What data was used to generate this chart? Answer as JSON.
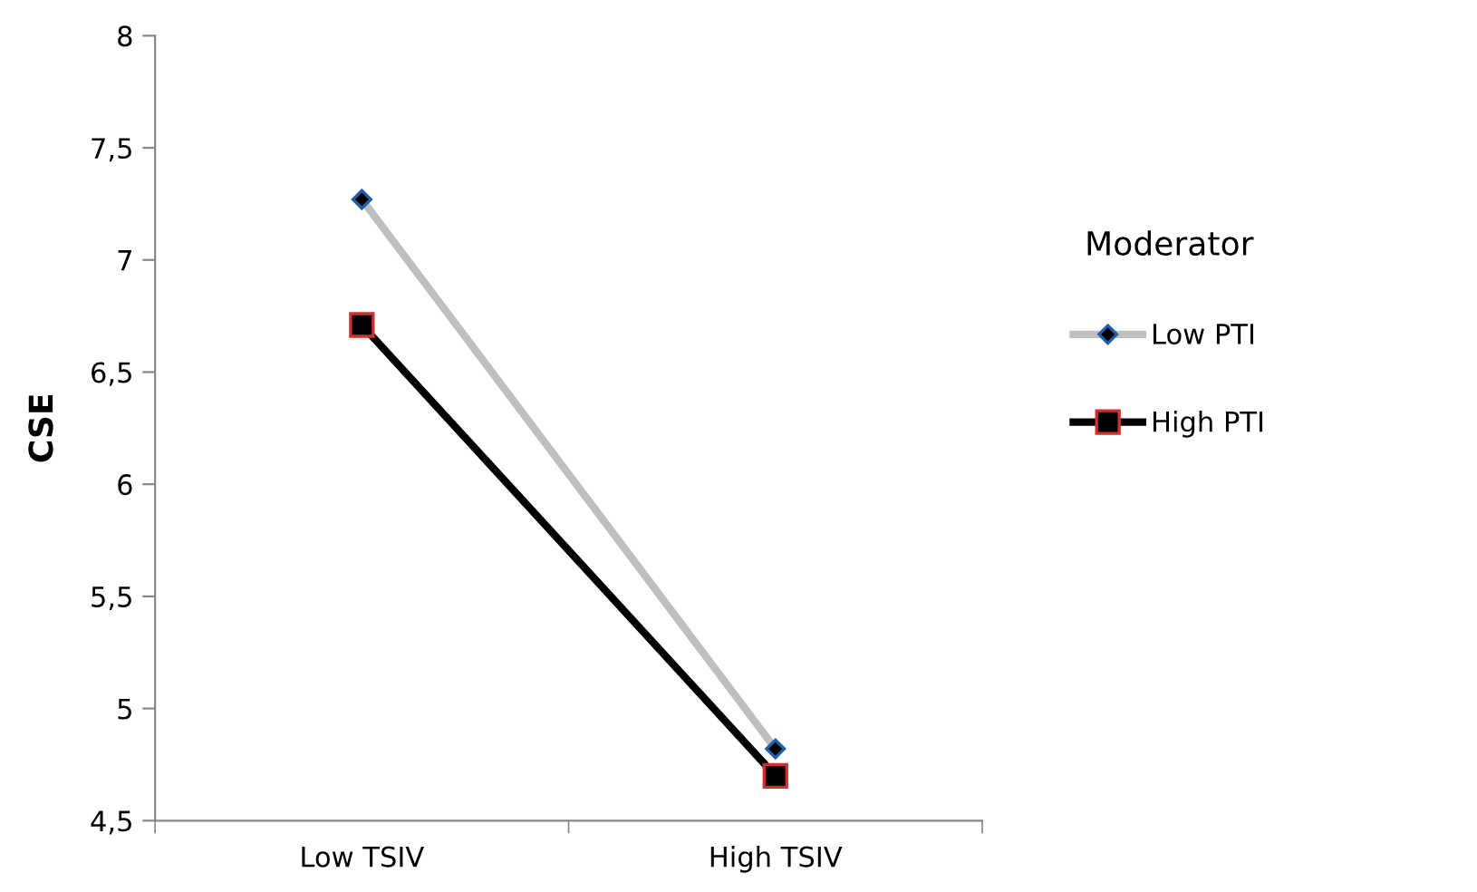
{
  "chart_data": {
    "type": "line",
    "ylabel": "CSE",
    "legend_title": "Moderator",
    "legend": "right",
    "categories": [
      "Low TSIV",
      "High TSIV"
    ],
    "series": [
      {
        "name": "Low PTI",
        "color": "#bfbfbf",
        "marker": "diamond",
        "values": [
          7.27,
          4.82
        ]
      },
      {
        "name": "High PTI",
        "color": "#000000",
        "marker": "square",
        "values": [
          6.71,
          4.7
        ]
      }
    ],
    "ylim": [
      4.5,
      8
    ],
    "yticks": [
      {
        "value": 4.5,
        "label": "4,5"
      },
      5,
      {
        "value": 5.5,
        "label": "5,5"
      },
      6,
      {
        "value": 6.5,
        "label": "6,5"
      },
      7,
      {
        "value": 7.5,
        "label": "7,5"
      },
      8
    ],
    "grid": false,
    "line_style": "solid"
  }
}
